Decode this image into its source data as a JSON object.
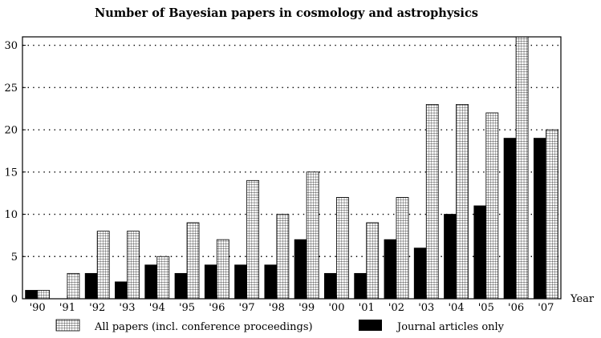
{
  "chart_data": {
    "type": "bar",
    "title": "Number of Bayesian papers in cosmology and astrophysics",
    "xlabel": "Year",
    "ylabel": "",
    "categories": [
      "'90",
      "'91",
      "'92",
      "'93",
      "'94",
      "'95",
      "'96",
      "'97",
      "'98",
      "'99",
      "'00",
      "'01",
      "'02",
      "'03",
      "'04",
      "'05",
      "'06",
      "'07"
    ],
    "series": [
      {
        "name": "Journal articles only",
        "fill": "solid",
        "color": "#000000",
        "values": [
          1,
          0,
          3,
          2,
          4,
          3,
          4,
          4,
          4,
          7,
          3,
          3,
          7,
          6,
          10,
          11,
          19,
          19
        ]
      },
      {
        "name": "All papers (incl. conference proceedings)",
        "fill": "grid",
        "color": "#ffffff",
        "values": [
          1,
          3,
          8,
          8,
          5,
          9,
          7,
          14,
          10,
          15,
          12,
          9,
          12,
          23,
          23,
          22,
          31,
          20
        ]
      }
    ],
    "ylim": [
      0,
      31
    ],
    "yticks": [
      0,
      5,
      10,
      15,
      20,
      25,
      30
    ],
    "grid": "dotted horizontal",
    "legend_position": "bottom",
    "legend": [
      {
        "label": "All papers (incl. conference proceedings)",
        "fill": "grid"
      },
      {
        "label": "Journal articles only",
        "fill": "solid"
      }
    ]
  }
}
